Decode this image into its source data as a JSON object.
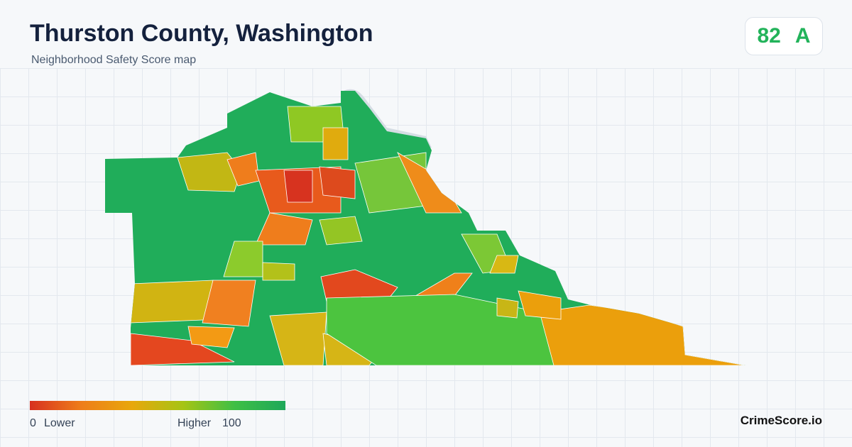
{
  "header": {
    "title": "Thurston County, Washington",
    "subtitle": "Neighborhood Safety Score map"
  },
  "score": {
    "value": 82,
    "grade": "A"
  },
  "legend": {
    "min": 0,
    "min_label": "Lower",
    "max_label": "Higher",
    "max": 100
  },
  "footer": {
    "brand": "CrimeScore.io"
  }
}
